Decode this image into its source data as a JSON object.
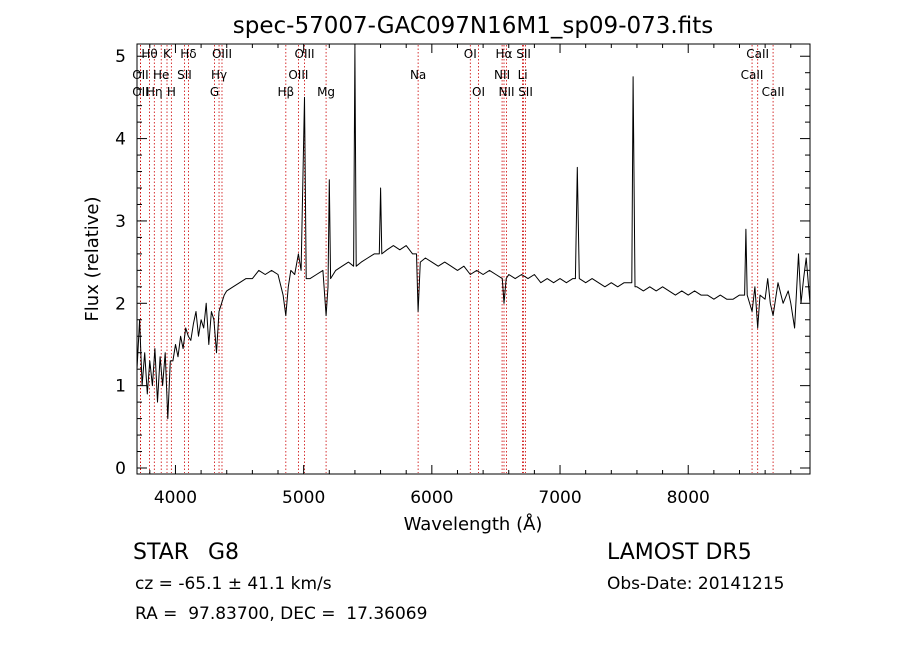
{
  "chart_data": {
    "type": "line",
    "title": "spec-57007-GAC097N16M1_sp09-073.fits",
    "xlabel": "Wavelength (Å)",
    "ylabel": "Flux (relative)",
    "xlim": [
      3700,
      8950
    ],
    "ylim": [
      0,
      5.1
    ],
    "xticks": [
      4000,
      5000,
      6000,
      7000,
      8000
    ],
    "yticks": [
      0,
      1,
      2,
      3,
      4,
      5
    ],
    "grid": false,
    "legend": "none",
    "series": [
      {
        "color": "#000000",
        "points": [
          [
            3700,
            1.2
          ],
          [
            3720,
            1.8
          ],
          [
            3740,
            1.0
          ],
          [
            3760,
            1.4
          ],
          [
            3780,
            0.9
          ],
          [
            3800,
            1.3
          ],
          [
            3820,
            1.0
          ],
          [
            3840,
            1.45
          ],
          [
            3860,
            0.8
          ],
          [
            3880,
            1.35
          ],
          [
            3900,
            1.0
          ],
          [
            3920,
            1.4
          ],
          [
            3940,
            0.6
          ],
          [
            3960,
            1.3
          ],
          [
            3980,
            1.3
          ],
          [
            4000,
            1.5
          ],
          [
            4020,
            1.35
          ],
          [
            4040,
            1.6
          ],
          [
            4060,
            1.45
          ],
          [
            4080,
            1.7
          ],
          [
            4100,
            1.6
          ],
          [
            4120,
            1.55
          ],
          [
            4140,
            1.75
          ],
          [
            4160,
            1.9
          ],
          [
            4180,
            1.6
          ],
          [
            4200,
            1.8
          ],
          [
            4220,
            1.7
          ],
          [
            4240,
            2.0
          ],
          [
            4260,
            1.5
          ],
          [
            4280,
            1.9
          ],
          [
            4300,
            1.8
          ],
          [
            4320,
            1.4
          ],
          [
            4340,
            1.9
          ],
          [
            4360,
            2.0
          ],
          [
            4380,
            2.1
          ],
          [
            4400,
            2.15
          ],
          [
            4450,
            2.2
          ],
          [
            4500,
            2.25
          ],
          [
            4550,
            2.3
          ],
          [
            4600,
            2.3
          ],
          [
            4650,
            2.4
          ],
          [
            4700,
            2.35
          ],
          [
            4750,
            2.4
          ],
          [
            4800,
            2.35
          ],
          [
            4840,
            2.1
          ],
          [
            4861,
            1.85
          ],
          [
            4880,
            2.2
          ],
          [
            4900,
            2.4
          ],
          [
            4930,
            2.35
          ],
          [
            4959,
            2.6
          ],
          [
            4980,
            2.4
          ],
          [
            5007,
            4.5
          ],
          [
            5020,
            2.3
          ],
          [
            5050,
            2.3
          ],
          [
            5100,
            2.35
          ],
          [
            5150,
            2.4
          ],
          [
            5175,
            1.85
          ],
          [
            5190,
            2.2
          ],
          [
            5200,
            3.5
          ],
          [
            5210,
            2.3
          ],
          [
            5250,
            2.4
          ],
          [
            5300,
            2.45
          ],
          [
            5350,
            2.5
          ],
          [
            5390,
            2.45
          ],
          [
            5400,
            5.1
          ],
          [
            5410,
            2.45
          ],
          [
            5450,
            2.5
          ],
          [
            5500,
            2.55
          ],
          [
            5550,
            2.6
          ],
          [
            5590,
            2.6
          ],
          [
            5600,
            3.4
          ],
          [
            5610,
            2.6
          ],
          [
            5650,
            2.65
          ],
          [
            5700,
            2.7
          ],
          [
            5750,
            2.65
          ],
          [
            5800,
            2.7
          ],
          [
            5850,
            2.6
          ],
          [
            5880,
            2.6
          ],
          [
            5893,
            1.9
          ],
          [
            5910,
            2.5
          ],
          [
            5950,
            2.55
          ],
          [
            6000,
            2.5
          ],
          [
            6050,
            2.45
          ],
          [
            6100,
            2.5
          ],
          [
            6150,
            2.45
          ],
          [
            6200,
            2.4
          ],
          [
            6250,
            2.45
          ],
          [
            6300,
            2.35
          ],
          [
            6350,
            2.4
          ],
          [
            6400,
            2.35
          ],
          [
            6450,
            2.4
          ],
          [
            6500,
            2.35
          ],
          [
            6550,
            2.3
          ],
          [
            6563,
            2.0
          ],
          [
            6580,
            2.3
          ],
          [
            6600,
            2.35
          ],
          [
            6650,
            2.3
          ],
          [
            6700,
            2.35
          ],
          [
            6750,
            2.3
          ],
          [
            6800,
            2.35
          ],
          [
            6850,
            2.25
          ],
          [
            6900,
            2.3
          ],
          [
            6950,
            2.25
          ],
          [
            7000,
            2.3
          ],
          [
            7050,
            2.25
          ],
          [
            7100,
            2.3
          ],
          [
            7120,
            2.3
          ],
          [
            7135,
            3.65
          ],
          [
            7150,
            2.3
          ],
          [
            7200,
            2.25
          ],
          [
            7250,
            2.3
          ],
          [
            7300,
            2.25
          ],
          [
            7350,
            2.2
          ],
          [
            7400,
            2.25
          ],
          [
            7450,
            2.2
          ],
          [
            7500,
            2.25
          ],
          [
            7560,
            2.25
          ],
          [
            7570,
            4.75
          ],
          [
            7585,
            2.2
          ],
          [
            7600,
            2.2
          ],
          [
            7650,
            2.15
          ],
          [
            7700,
            2.2
          ],
          [
            7750,
            2.15
          ],
          [
            7800,
            2.2
          ],
          [
            7850,
            2.15
          ],
          [
            7900,
            2.1
          ],
          [
            7950,
            2.15
          ],
          [
            8000,
            2.1
          ],
          [
            8050,
            2.15
          ],
          [
            8100,
            2.1
          ],
          [
            8150,
            2.1
          ],
          [
            8200,
            2.05
          ],
          [
            8250,
            2.1
          ],
          [
            8300,
            2.05
          ],
          [
            8350,
            2.05
          ],
          [
            8400,
            2.1
          ],
          [
            8440,
            2.1
          ],
          [
            8450,
            2.9
          ],
          [
            8460,
            2.1
          ],
          [
            8498,
            1.9
          ],
          [
            8520,
            2.2
          ],
          [
            8542,
            1.7
          ],
          [
            8560,
            2.1
          ],
          [
            8600,
            2.05
          ],
          [
            8620,
            2.3
          ],
          [
            8640,
            2.0
          ],
          [
            8662,
            1.85
          ],
          [
            8700,
            2.25
          ],
          [
            8740,
            2.0
          ],
          [
            8780,
            2.15
          ],
          [
            8800,
            2.0
          ],
          [
            8830,
            1.7
          ],
          [
            8860,
            2.6
          ],
          [
            8880,
            2.0
          ],
          [
            8900,
            2.3
          ],
          [
            8920,
            2.55
          ],
          [
            8950,
            2.0
          ]
        ]
      }
    ],
    "line_color": "#cc0000",
    "spectral_lines": [
      {
        "label": "Hθ",
        "x": 3798,
        "row": 0
      },
      {
        "label": "OII",
        "x": 3727,
        "row": 1
      },
      {
        "label": "OII",
        "x": 3727,
        "row": 2
      },
      {
        "label": "Hη",
        "x": 3835,
        "row": 2
      },
      {
        "label": "He",
        "x": 3889,
        "row": 1
      },
      {
        "label": "K",
        "x": 3934,
        "row": 0
      },
      {
        "label": "H",
        "x": 3968,
        "row": 2
      },
      {
        "label": "Hδ",
        "x": 4101,
        "row": 0
      },
      {
        "label": "SII",
        "x": 4070,
        "row": 1
      },
      {
        "label": "OIII",
        "x": 4363,
        "row": 0
      },
      {
        "label": "Hγ",
        "x": 4340,
        "row": 1
      },
      {
        "label": "G",
        "x": 4305,
        "row": 2
      },
      {
        "label": "OIII",
        "x": 5007,
        "row": 0
      },
      {
        "label": "OIII",
        "x": 4959,
        "row": 1
      },
      {
        "label": "Hβ",
        "x": 4861,
        "row": 2
      },
      {
        "label": "Mg",
        "x": 5175,
        "row": 2
      },
      {
        "label": "Na",
        "x": 5893,
        "row": 1
      },
      {
        "label": "OI",
        "x": 6300,
        "row": 0
      },
      {
        "label": "OI",
        "x": 6364,
        "row": 2
      },
      {
        "label": "Hα",
        "x": 6563,
        "row": 0
      },
      {
        "label": "NII",
        "x": 6548,
        "row": 1
      },
      {
        "label": "NII",
        "x": 6583,
        "row": 2
      },
      {
        "label": "SII",
        "x": 6716,
        "row": 0
      },
      {
        "label": "Li",
        "x": 6708,
        "row": 1
      },
      {
        "label": "SII",
        "x": 6731,
        "row": 2
      },
      {
        "label": "CaII",
        "x": 8542,
        "row": 0
      },
      {
        "label": "CaII",
        "x": 8498,
        "row": 1
      },
      {
        "label": "CaII",
        "x": 8662,
        "row": 2
      }
    ]
  },
  "info": {
    "object_class": "STAR",
    "subclass": "G8",
    "survey": "LAMOST DR5",
    "cz": "cz = -65.1 ± 41.1 km/s",
    "obs_date": "Obs-Date: 20141215",
    "coords": "RA =  97.83700, DEC =  17.36069"
  }
}
